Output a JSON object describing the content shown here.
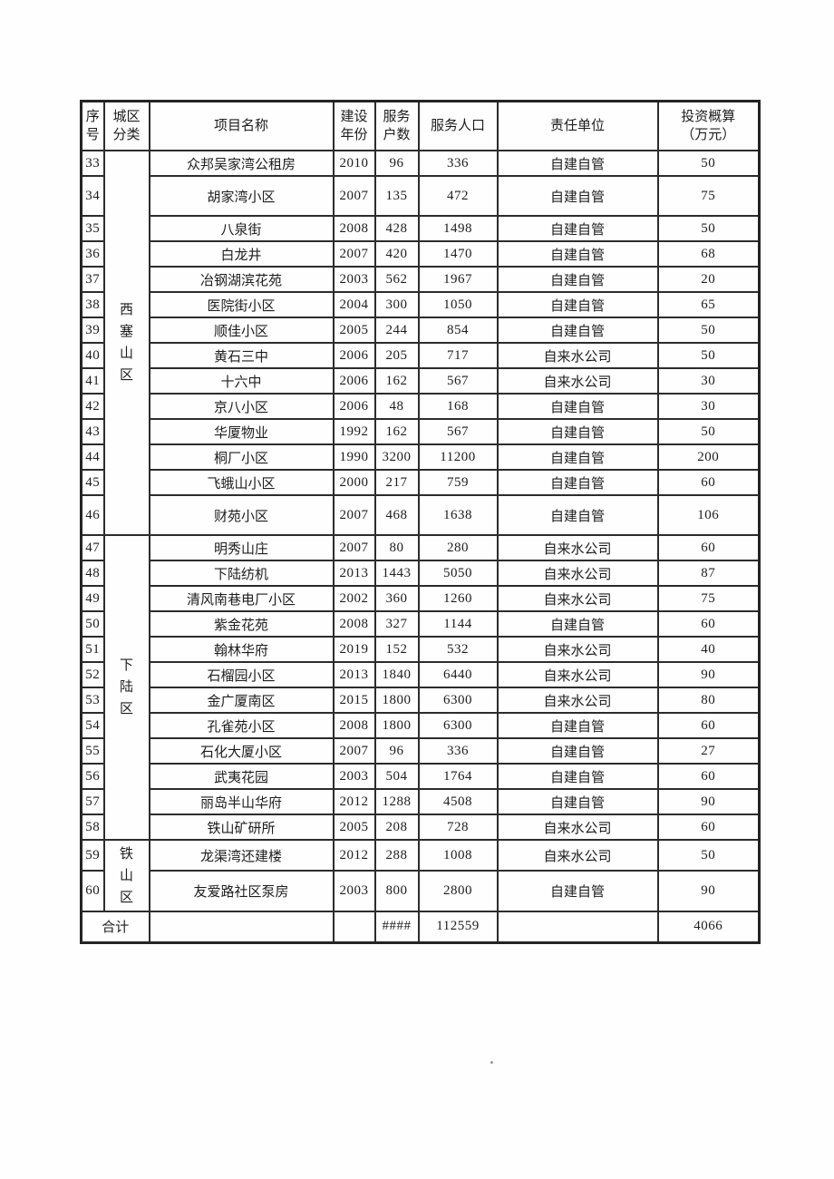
{
  "table": {
    "headers": [
      "序\n号",
      "城区\n分类",
      "项目名称",
      "建设\n年份",
      "服务\n户数",
      "服务人口",
      "责任单位",
      "投资概算\n（万元）"
    ],
    "districts": [
      {
        "label": "西塞山区",
        "start": "33",
        "span": 14
      },
      {
        "label": "下陆区",
        "start": "47",
        "span": 12
      },
      {
        "label": "铁山区",
        "start": "59",
        "span": 2
      }
    ],
    "rows": [
      {
        "no": "33",
        "name": "众邦吴家湾公租房",
        "year": "2010",
        "households": "96",
        "population": "336",
        "unit": "自建自管",
        "investment": "50"
      },
      {
        "no": "34",
        "name": "胡家湾小区",
        "year": "2007",
        "households": "135",
        "population": "472",
        "unit": "自建自管",
        "investment": "75"
      },
      {
        "no": "35",
        "name": "八泉街",
        "year": "2008",
        "households": "428",
        "population": "1498",
        "unit": "自建自管",
        "investment": "50"
      },
      {
        "no": "36",
        "name": "白龙井",
        "year": "2007",
        "households": "420",
        "population": "1470",
        "unit": "自建自管",
        "investment": "68"
      },
      {
        "no": "37",
        "name": "冶钢湖滨花苑",
        "year": "2003",
        "households": "562",
        "population": "1967",
        "unit": "自建自管",
        "investment": "20"
      },
      {
        "no": "38",
        "name": "医院街小区",
        "year": "2004",
        "households": "300",
        "population": "1050",
        "unit": "自建自管",
        "investment": "65"
      },
      {
        "no": "39",
        "name": "顺佳小区",
        "year": "2005",
        "households": "244",
        "population": "854",
        "unit": "自建自管",
        "investment": "50"
      },
      {
        "no": "40",
        "name": "黄石三中",
        "year": "2006",
        "households": "205",
        "population": "717",
        "unit": "自来水公司",
        "investment": "50"
      },
      {
        "no": "41",
        "name": "十六中",
        "year": "2006",
        "households": "162",
        "population": "567",
        "unit": "自来水公司",
        "investment": "30"
      },
      {
        "no": "42",
        "name": "京八小区",
        "year": "2006",
        "households": "48",
        "population": "168",
        "unit": "自建自管",
        "investment": "30"
      },
      {
        "no": "43",
        "name": "华厦物业",
        "year": "1992",
        "households": "162",
        "population": "567",
        "unit": "自建自管",
        "investment": "50"
      },
      {
        "no": "44",
        "name": "桐厂小区",
        "year": "1990",
        "households": "3200",
        "population": "11200",
        "unit": "自建自管",
        "investment": "200"
      },
      {
        "no": "45",
        "name": "飞蛾山小区",
        "year": "2000",
        "households": "217",
        "population": "759",
        "unit": "自建自管",
        "investment": "60"
      },
      {
        "no": "46",
        "name": "财苑小区",
        "year": "2007",
        "households": "468",
        "population": "1638",
        "unit": "自建自管",
        "investment": "106"
      },
      {
        "no": "47",
        "name": "明秀山庄",
        "year": "2007",
        "households": "80",
        "population": "280",
        "unit": "自来水公司",
        "investment": "60"
      },
      {
        "no": "48",
        "name": "下陆纺机",
        "year": "2013",
        "households": "1443",
        "population": "5050",
        "unit": "自来水公司",
        "investment": "87"
      },
      {
        "no": "49",
        "name": "清风南巷电厂小区",
        "year": "2002",
        "households": "360",
        "population": "1260",
        "unit": "自来水公司",
        "investment": "75"
      },
      {
        "no": "50",
        "name": "紫金花苑",
        "year": "2008",
        "households": "327",
        "population": "1144",
        "unit": "自建自管",
        "investment": "60"
      },
      {
        "no": "51",
        "name": "翰林华府",
        "year": "2019",
        "households": "152",
        "population": "532",
        "unit": "自来水公司",
        "investment": "40"
      },
      {
        "no": "52",
        "name": "石榴园小区",
        "year": "2013",
        "households": "1840",
        "population": "6440",
        "unit": "自来水公司",
        "investment": "90"
      },
      {
        "no": "53",
        "name": "金广厦南区",
        "year": "2015",
        "households": "1800",
        "population": "6300",
        "unit": "自来水公司",
        "investment": "80"
      },
      {
        "no": "54",
        "name": "孔雀苑小区",
        "year": "2008",
        "households": "1800",
        "population": "6300",
        "unit": "自建自管",
        "investment": "60"
      },
      {
        "no": "55",
        "name": "石化大厦小区",
        "year": "2007",
        "households": "96",
        "population": "336",
        "unit": "自建自管",
        "investment": "27"
      },
      {
        "no": "56",
        "name": "武夷花园",
        "year": "2003",
        "households": "504",
        "population": "1764",
        "unit": "自建自管",
        "investment": "60"
      },
      {
        "no": "57",
        "name": "丽岛半山华府",
        "year": "2012",
        "households": "1288",
        "population": "4508",
        "unit": "自建自管",
        "investment": "90"
      },
      {
        "no": "58",
        "name": "铁山矿研所",
        "year": "2005",
        "households": "208",
        "population": "728",
        "unit": "自来水公司",
        "investment": "60"
      },
      {
        "no": "59",
        "name": "龙渠湾还建楼",
        "year": "2012",
        "households": "288",
        "population": "1008",
        "unit": "自来水公司",
        "investment": "50"
      },
      {
        "no": "60",
        "name": "友爱路社区泵房",
        "year": "2003",
        "households": "800",
        "population": "2800",
        "unit": "自建自管",
        "investment": "90"
      }
    ],
    "total": {
      "label": "合计",
      "name": "",
      "year": "",
      "households": "####",
      "population": "112559",
      "unit": "",
      "investment": "4066"
    }
  }
}
